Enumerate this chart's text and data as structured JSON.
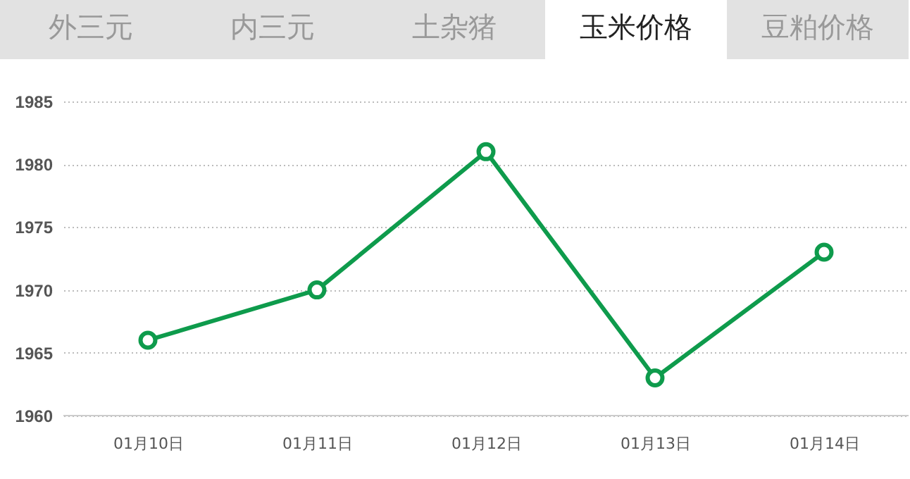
{
  "chart_data": {
    "type": "line",
    "annotations": [
      "外三元",
      "内三元",
      "土杂猪",
      "玉米价格",
      "豆粕价格"
    ],
    "categories": [
      "01月10日",
      "01月11日",
      "01月12日",
      "01月13日",
      "01月14日"
    ],
    "series": [
      {
        "color": "#0e9b4c",
        "values": [
          1966,
          1970,
          1981,
          1963,
          1973
        ]
      }
    ],
    "ylim": [
      1960,
      1985
    ],
    "yticks": [
      1960,
      1965,
      1970,
      1975,
      1980,
      1985
    ],
    "grid": "y",
    "marker": "circle"
  }
}
